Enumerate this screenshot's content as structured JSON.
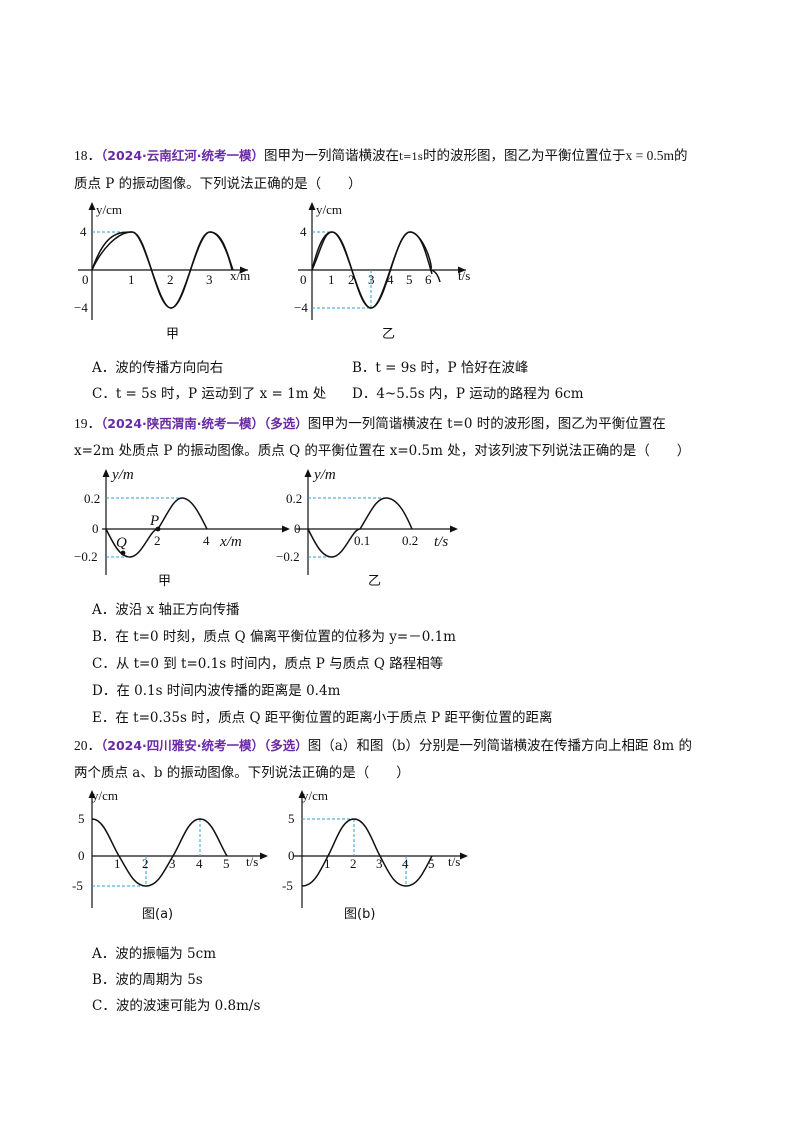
{
  "q18": {
    "number": "18．",
    "source": "（2024·云南红河·统考一模）",
    "stem_a": "图甲为一列简谐横波在",
    "stem_t": "t=1s",
    "stem_b": "时的波形图，图乙为平衡位置位于",
    "stem_x": "x = 0.5m",
    "stem_c": "的",
    "stem_line2": "质点 P 的振动图像。下列说法正确的是（　　）",
    "options": {
      "A": "A．波的传播方向向右",
      "B": "B．t = 9s 时，P 恰好在波峰",
      "C": "C．t = 5s 时，P 运动到了 x = 1m 处",
      "D": "D．4~5.5s 内，P 运动的路程为 6cm"
    },
    "fig_left": {
      "ylabel": "y/cm",
      "xlabel": "x/m",
      "caption": "甲",
      "yticks": [
        "4",
        "−4"
      ],
      "xticks": [
        "0",
        "1",
        "2",
        "3"
      ]
    },
    "fig_right": {
      "ylabel": "y/cm",
      "xlabel": "t/s",
      "caption": "乙",
      "yticks": [
        "4",
        "−4"
      ],
      "xticks": [
        "0",
        "1",
        "2",
        "3",
        "4",
        "5",
        "6"
      ]
    }
  },
  "q19": {
    "number": "19．",
    "source": "（2024·陕西渭南·统考一模）（多选）",
    "stem_line1": "图甲为一列简谐横波在 t=0 时的波形图，图乙为平衡位置在",
    "stem_line2": "x=2m 处质点 P 的振动图像。质点 Q 的平衡位置在 x=0.5m 处，对该列波下列说法正确的是（　　）",
    "options": {
      "A": "A．波沿 x 轴正方向传播",
      "B": "B．在 t=0 时刻，质点 Q 偏离平衡位置的位移为 y=－0.1m",
      "C": "C．从 t=0 到 t=0.1s 时间内，质点 P 与质点 Q 路程相等",
      "D": "D．在 0.1s 时间内波传播的距离是 0.4m",
      "E": "E．在 t=0.35s 时，质点 Q 距平衡位置的距离小于质点 P 距平衡位置的距离"
    },
    "fig_left": {
      "ylabel": "y/m",
      "xlabel": "x/m",
      "caption": "甲",
      "yticks": [
        "0.2",
        "0",
        "−0.2"
      ],
      "xticks": [
        "2",
        "4"
      ],
      "points": [
        "P",
        "Q"
      ]
    },
    "fig_right": {
      "ylabel": "y/m",
      "xlabel": "t/s",
      "caption": "乙",
      "yticks": [
        "0.2",
        "0",
        "−0.2"
      ],
      "xticks": [
        "0.1",
        "0.2"
      ]
    }
  },
  "q20": {
    "number": "20．",
    "source": "（2024·四川雅安·统考一模）（多选）",
    "stem_line1": "图（a）和图（b）分别是一列简谐横波在传播方向上相距 8m 的",
    "stem_line2": "两个质点 a、b 的振动图像。下列说法正确的是（　　）",
    "options": {
      "A": "A．波的振幅为 5cm",
      "B": "B．波的周期为 5s",
      "C": "C．波的波速可能为 0.8m/s"
    },
    "fig_left": {
      "ylabel": "y/cm",
      "xlabel": "t/s",
      "caption": "图(a)",
      "yticks": [
        "5",
        "0",
        "-5"
      ],
      "xticks": [
        "1",
        "2",
        "3",
        "4",
        "5"
      ]
    },
    "fig_right": {
      "ylabel": "y/cm",
      "xlabel": "t/s",
      "caption": "图(b)",
      "yticks": [
        "5",
        "0",
        "-5"
      ],
      "xticks": [
        "1",
        "2",
        "3",
        "4",
        "5"
      ]
    }
  }
}
